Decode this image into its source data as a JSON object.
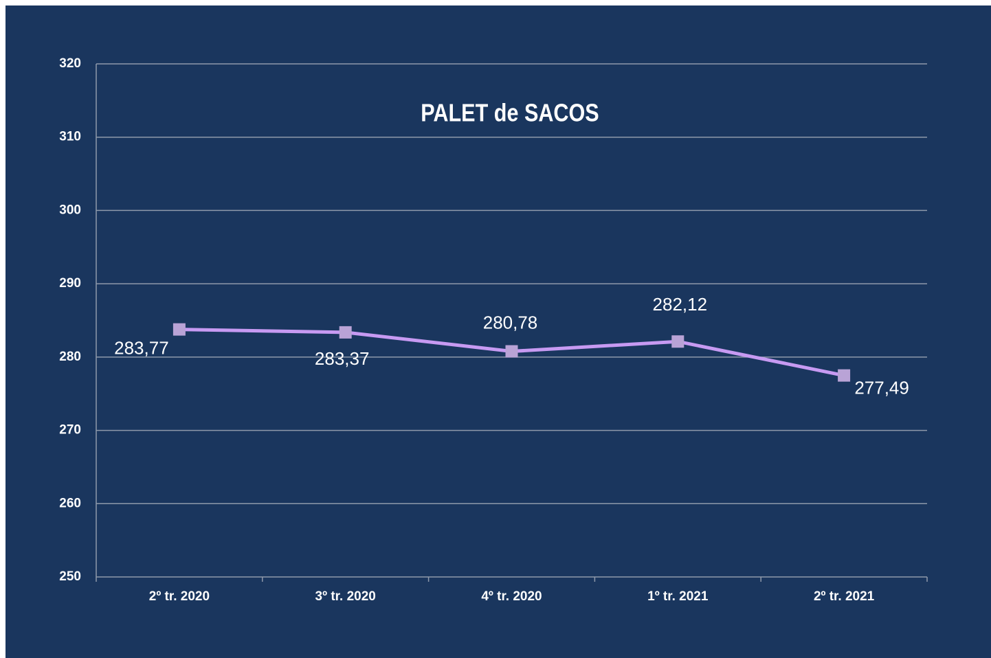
{
  "chart_data": {
    "type": "line",
    "title": "PALET de SACOS",
    "categories": [
      "2º tr. 2020",
      "3º tr. 2020",
      "4º tr. 2020",
      "1º tr. 2021",
      "2º tr. 2021"
    ],
    "values": [
      283.77,
      283.37,
      280.78,
      282.12,
      277.49
    ],
    "value_labels": [
      "283,77",
      "283,37",
      "280,78",
      "282,12",
      "277,49"
    ],
    "color": "#c79af2",
    "marker_color": "#b9a3d6",
    "ylim": [
      250,
      320
    ],
    "yticks": [
      250,
      260,
      270,
      280,
      290,
      300,
      310,
      320
    ],
    "grid": true
  }
}
